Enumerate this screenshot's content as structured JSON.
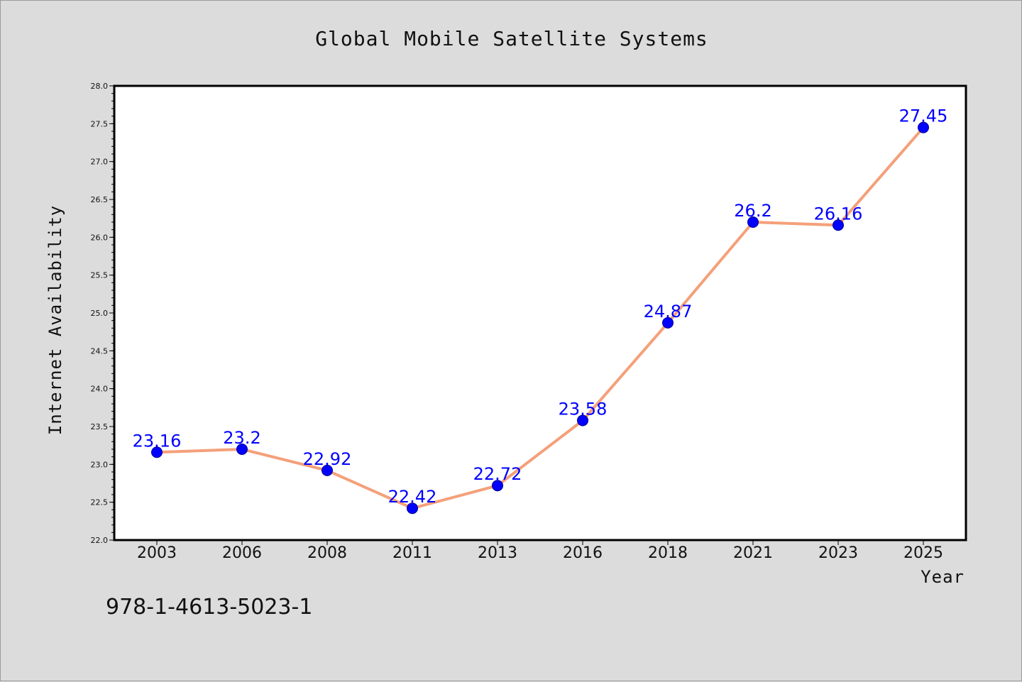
{
  "chart_data": {
    "type": "line",
    "title": "Global Mobile Satellite Systems",
    "xlabel": "Year",
    "ylabel": "Internet Availability",
    "categories": [
      "2003",
      "2006",
      "2008",
      "2011",
      "2013",
      "2016",
      "2018",
      "2021",
      "2023",
      "2025"
    ],
    "series": [
      {
        "values": [
          23.16,
          23.2,
          22.92,
          22.42,
          22.72,
          23.58,
          24.87,
          26.2,
          26.16,
          27.45
        ],
        "data_labels": [
          "23.16",
          "23.2",
          "22.92",
          "22.42",
          "22.72",
          "23.58",
          "24.87",
          "26.2",
          "26.16",
          "27.45"
        ],
        "line_color": "#f4a07a",
        "marker_color": "#0000ff"
      }
    ],
    "ylim": [
      22.0,
      28.0
    ],
    "yticks": [
      "22.0",
      "22.5",
      "23.0",
      "23.5",
      "24.0",
      "24.5",
      "25.0",
      "25.5",
      "26.0",
      "26.5",
      "27.0",
      "27.5",
      "28.0"
    ],
    "grid": false,
    "legend": false
  },
  "footer": {
    "isbn": "978-1-4613-5023-1"
  },
  "colors": {
    "background": "#dcdcdc",
    "plot_background": "#ffffff",
    "line": "#f4a07a",
    "marker": "#0000ff",
    "data_label": "#0000ff"
  }
}
